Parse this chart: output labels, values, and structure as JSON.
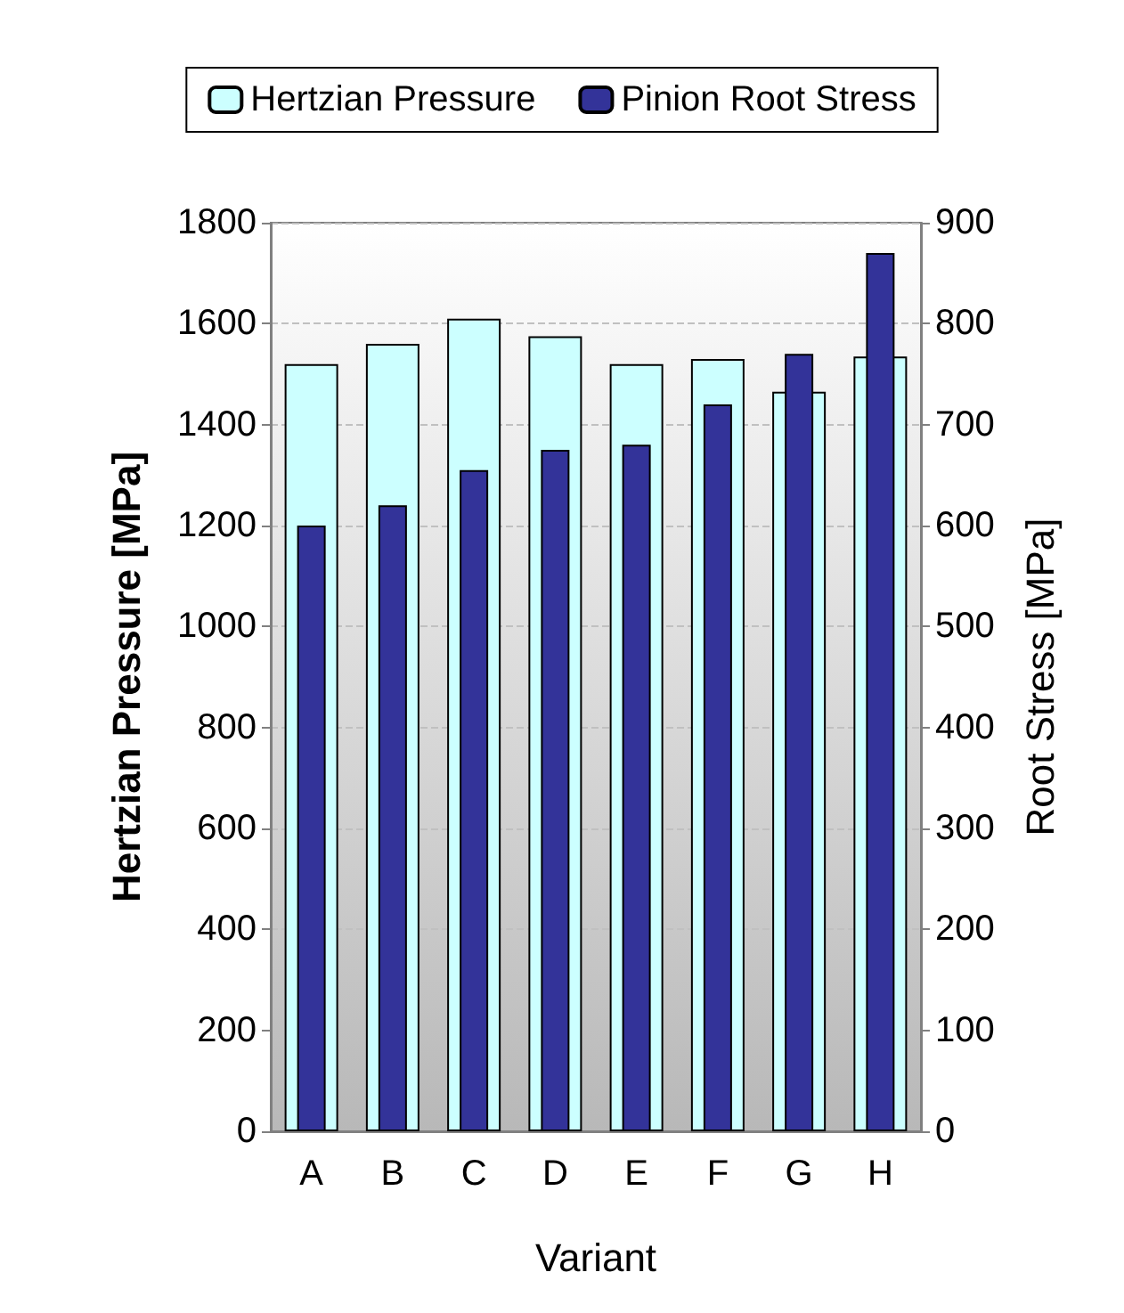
{
  "chart_data": {
    "type": "bar",
    "xlabel": "Variant",
    "ylabel": "Hertzian Pressure [MPa]",
    "y2label": "Root Stress [MPa]",
    "categories": [
      "A",
      "B",
      "C",
      "D",
      "E",
      "F",
      "G",
      "H"
    ],
    "series": [
      {
        "name": "Hertzian Pressure",
        "color": "#ccffff",
        "values": [
          1520,
          1560,
          1610,
          1575,
          1520,
          1530,
          1465,
          1535
        ]
      },
      {
        "name": "Pinion Root Stress",
        "color": "#333399",
        "axis": "y2",
        "values": [
          600,
          620,
          655,
          675,
          680,
          720,
          770,
          870
        ]
      }
    ],
    "ylim": [
      0,
      1800
    ],
    "yticks": [
      0,
      200,
      400,
      600,
      800,
      {
        "value": 1000,
        "label": "1000"
      },
      {
        "value": 1200,
        "label": "1200"
      },
      {
        "value": 1400,
        "label": "1400"
      },
      {
        "value": 1600,
        "label": "1600"
      },
      {
        "value": 1800,
        "label": "1800"
      }
    ],
    "y2lim": [
      0,
      900
    ],
    "y2ticks": [
      0,
      100,
      200,
      300,
      400,
      500,
      600,
      700,
      800,
      900
    ],
    "grid": "y",
    "legend": "top"
  }
}
